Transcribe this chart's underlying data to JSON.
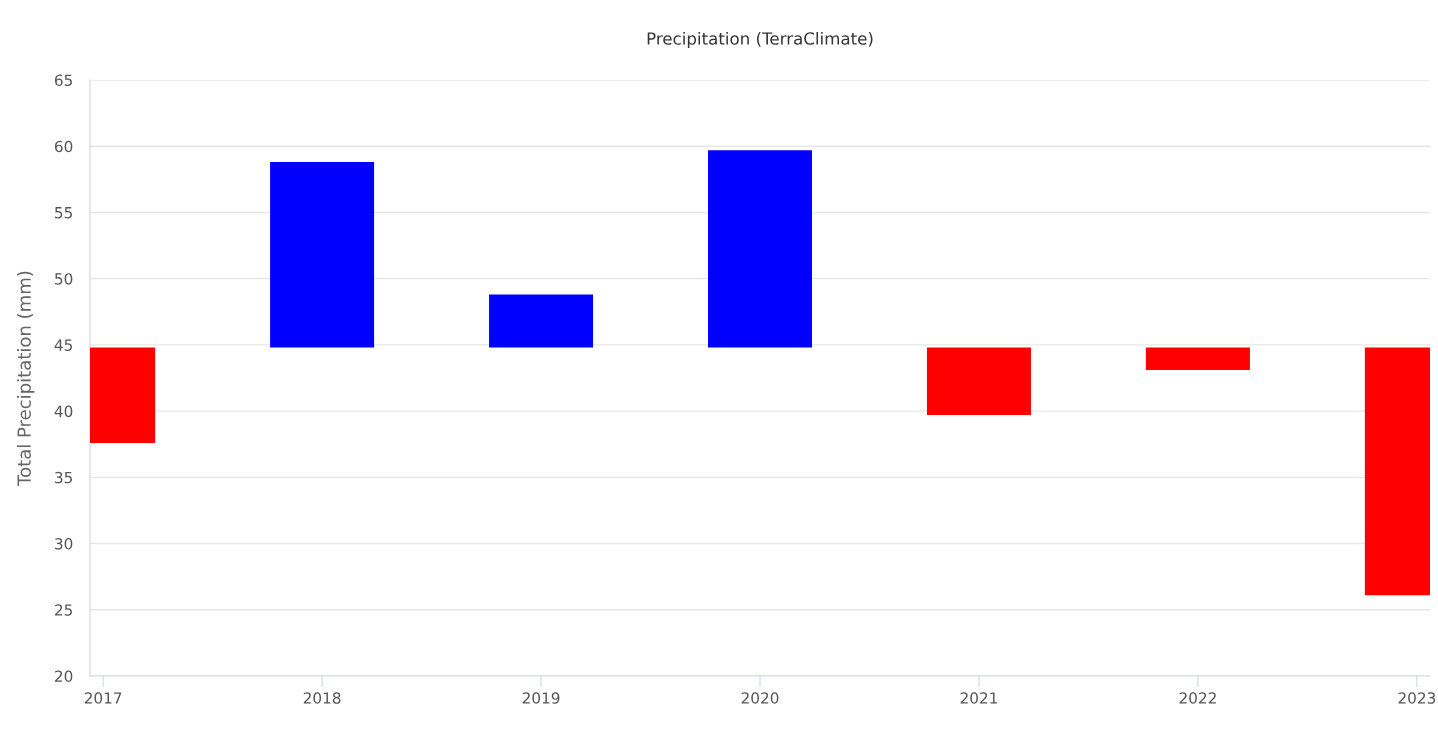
{
  "chart_data": {
    "type": "bar",
    "title": "Precipitation (TerraClimate)",
    "ylabel": "Total Precipitation (mm)",
    "x": [
      2017,
      2018,
      2019,
      2020,
      2021,
      2022,
      2023
    ],
    "base": [
      44.8,
      44.8,
      44.8,
      44.8,
      44.8,
      44.8,
      44.8
    ],
    "values": [
      -7.2,
      14.0,
      4.0,
      14.9,
      -5.1,
      -1.7,
      -18.7
    ],
    "colors": [
      "#ff0000",
      "#0000ff",
      "#0000ff",
      "#0000ff",
      "#ff0000",
      "#ff0000",
      "#ff0000"
    ],
    "xlim": [
      2016.94,
      2023.06
    ],
    "xticks": [
      2017,
      2018,
      2019,
      2020,
      2021,
      2022,
      2023
    ],
    "ylim": [
      20,
      65
    ],
    "yticks": [
      20,
      25,
      30,
      35,
      40,
      45,
      50,
      55,
      60,
      65
    ],
    "grid": "y",
    "legend": false
  }
}
